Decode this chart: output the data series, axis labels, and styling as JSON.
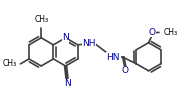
{
  "bg_color": "#ffffff",
  "bond_color": "#404040",
  "bond_width": 1.2,
  "text_color": "#000000",
  "blue_color": "#00008B",
  "font_size": 6.5,
  "fig_width": 1.89,
  "fig_height": 1.11,
  "xlim": [
    0,
    10
  ],
  "ylim": [
    0,
    5.5
  ],
  "bl": 0.78
}
